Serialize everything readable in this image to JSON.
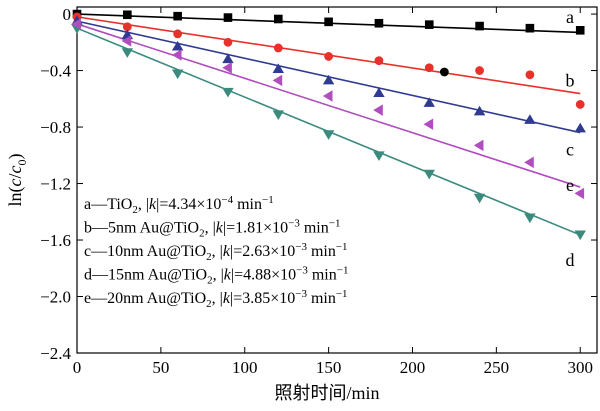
{
  "chart_data": {
    "type": "scatter",
    "xlabel": "照射时间/min",
    "ylabel": "ln(c/c0)",
    "ylabel_parts": {
      "pre": "ln(",
      "c": "c",
      "slash": "/",
      "c0": "c",
      "sub": "0",
      "post": ")"
    },
    "xlim": [
      0,
      310
    ],
    "ylim": [
      -2.4,
      0.05
    ],
    "x_ticks": [
      0,
      50,
      100,
      150,
      200,
      250,
      300
    ],
    "y_ticks": [
      0,
      -0.4,
      -0.8,
      -1.2,
      -1.6,
      -2.0,
      -2.4
    ],
    "y_tick_labels": [
      "0",
      "−0.4",
      "−0.8",
      "−1.2",
      "−1.6",
      "−2.0",
      "−2.4"
    ],
    "series": [
      {
        "id": "a",
        "label": "a",
        "color": "#000000",
        "marker": "square",
        "x": [
          0,
          30,
          60,
          90,
          120,
          150,
          180,
          210,
          240,
          270,
          300
        ],
        "y": [
          0.0,
          -0.005,
          -0.015,
          -0.025,
          -0.035,
          -0.055,
          -0.065,
          -0.075,
          -0.085,
          -0.1,
          -0.115
        ],
        "fit": {
          "slope": -0.000434,
          "intercept": 0.0
        },
        "legend": {
          "prefix": "a—TiO",
          "sub": "2",
          "mid": ", |",
          "k": "k",
          "eq": "|=4.34×10",
          "exp": "−4",
          "unit": " min",
          "unit_exp": "−1"
        }
      },
      {
        "id": "b",
        "label": "b",
        "color": "#e8312b",
        "marker": "circle",
        "x": [
          0,
          30,
          60,
          90,
          120,
          150,
          180,
          210,
          240,
          270,
          300
        ],
        "y": [
          -0.02,
          -0.09,
          -0.14,
          -0.2,
          -0.24,
          -0.3,
          -0.33,
          -0.38,
          -0.4,
          -0.43,
          -0.64
        ],
        "fit": {
          "slope": -0.00181,
          "intercept": -0.02
        },
        "legend": {
          "prefix": "b—5nm Au@TiO",
          "sub": "2",
          "mid": ", |",
          "k": "k",
          "eq": "|=1.81×10",
          "exp": "−3",
          "unit": " min",
          "unit_exp": "−1"
        }
      },
      {
        "id": "c",
        "label": "c",
        "color": "#2f3a91",
        "marker": "triangle-up",
        "x": [
          0,
          30,
          60,
          90,
          120,
          150,
          180,
          210,
          240,
          270,
          300
        ],
        "y": [
          -0.05,
          -0.15,
          -0.23,
          -0.32,
          -0.39,
          -0.47,
          -0.56,
          -0.63,
          -0.69,
          -0.75,
          -0.81
        ],
        "fit": {
          "slope": -0.00263,
          "intercept": -0.05
        },
        "legend": {
          "prefix": "c—10nm Au@TiO",
          "sub": "2",
          "mid": ", |",
          "k": "k",
          "eq": "|=2.63×10",
          "exp": "−3",
          "unit": " min",
          "unit_exp": "−1"
        }
      },
      {
        "id": "d",
        "label": "d",
        "color": "#3a8a7e",
        "marker": "triangle-down",
        "x": [
          0,
          30,
          60,
          90,
          120,
          150,
          180,
          210,
          240,
          270,
          300
        ],
        "y": [
          -0.1,
          -0.27,
          -0.42,
          -0.55,
          -0.71,
          -0.85,
          -1.0,
          -1.13,
          -1.3,
          -1.44,
          -1.56
        ],
        "fit": {
          "slope": -0.00488,
          "intercept": -0.1
        },
        "legend": {
          "prefix": "d—15nm Au@TiO",
          "sub": "2",
          "mid": ", |",
          "k": "k",
          "eq": "|=4.88×10",
          "exp": "−3",
          "unit": " min",
          "unit_exp": "−1"
        }
      },
      {
        "id": "e",
        "label": "e",
        "color": "#b04dbf",
        "marker": "triangle-left",
        "x": [
          0,
          30,
          60,
          90,
          120,
          150,
          180,
          210,
          240,
          270,
          300
        ],
        "y": [
          -0.07,
          -0.19,
          -0.29,
          -0.38,
          -0.47,
          -0.58,
          -0.68,
          -0.78,
          -0.93,
          -1.05,
          -1.27
        ],
        "fit": {
          "slope": -0.00385,
          "intercept": -0.07
        },
        "legend": {
          "prefix": "e—20nm Au@TiO",
          "sub": "2",
          "mid": ", |",
          "k": "k",
          "eq": "|=3.85×10",
          "exp": "−3",
          "unit": " min",
          "unit_exp": "−1"
        }
      }
    ],
    "extra_points": [
      {
        "x": 219,
        "y": -0.41,
        "color": "#000000",
        "marker": "circle"
      }
    ],
    "legend_placement": "bottom-left"
  }
}
